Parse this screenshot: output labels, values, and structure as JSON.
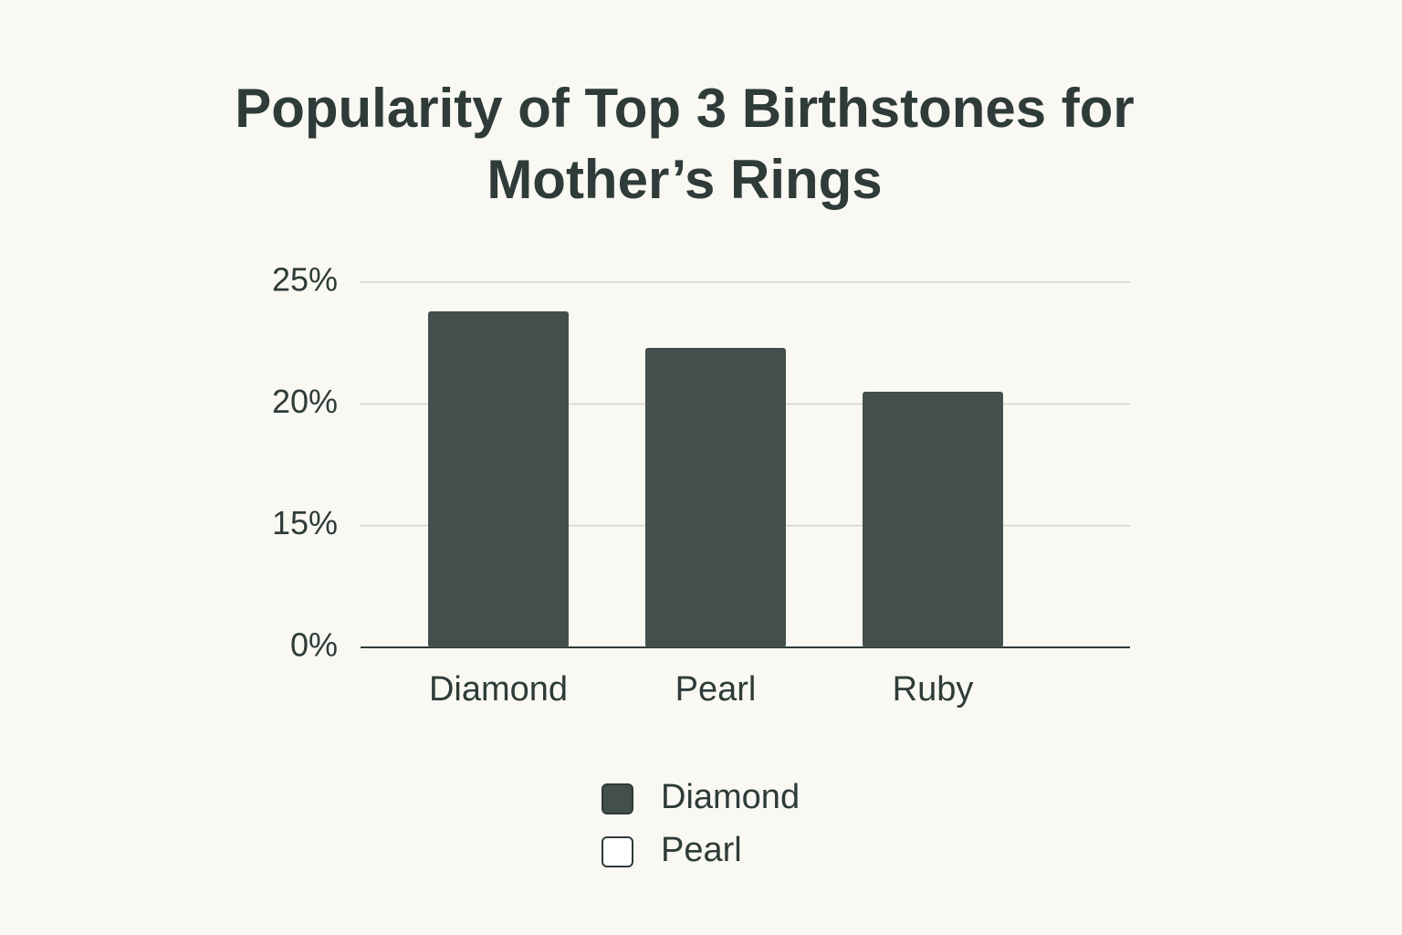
{
  "chart_data": {
    "type": "bar",
    "title": "Popularity of Top 3 Birthstones for Mother’s Rings",
    "categories": [
      "Diamond",
      "Pearl",
      "Ruby"
    ],
    "values": [
      23.8,
      22.3,
      20.5
    ],
    "color": "#434f4c",
    "ylim": [
      0,
      25
    ],
    "yticks": [
      {
        "value": 0,
        "label": "0%"
      },
      {
        "value": 15,
        "label": "15%"
      },
      {
        "value": 20,
        "label": "20%"
      },
      {
        "value": 25,
        "label": "25%"
      }
    ],
    "grid": true,
    "legend": [
      {
        "name": "Diamond",
        "color": "#434f4c"
      },
      {
        "name": "Pearl",
        "color": "#ffffff"
      }
    ]
  }
}
